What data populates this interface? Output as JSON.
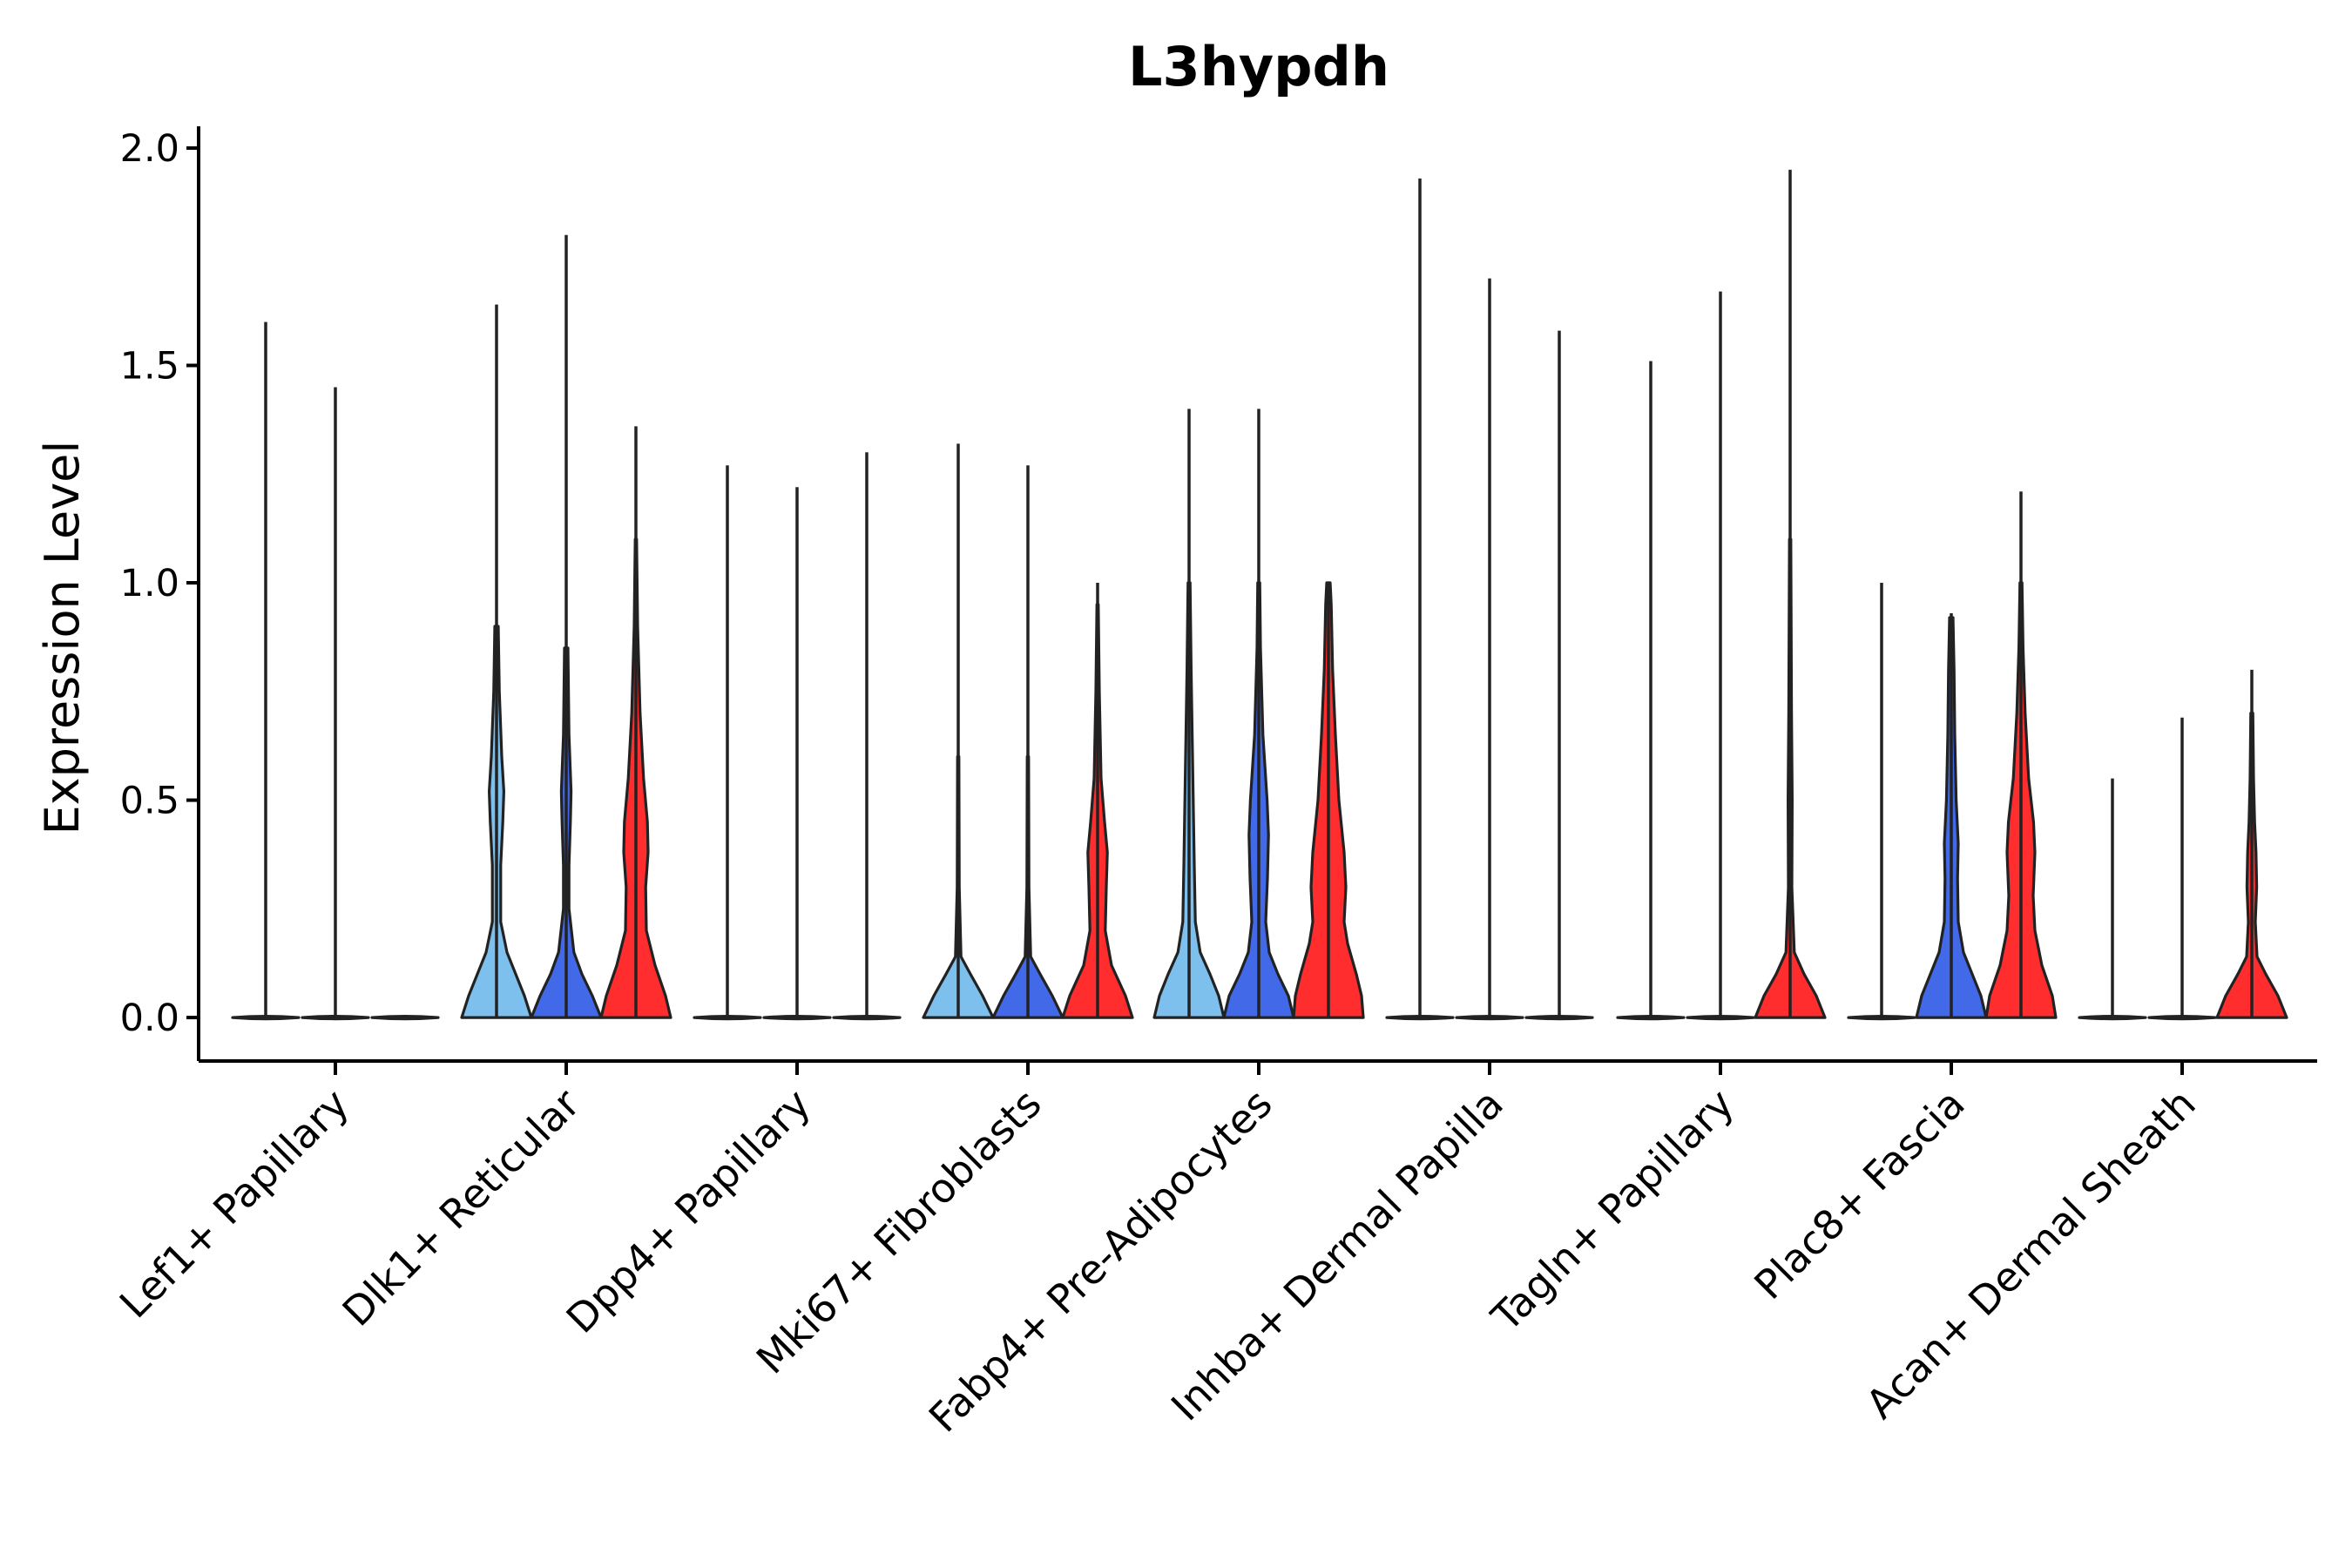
{
  "chart_data": {
    "type": "violin",
    "title": "L3hypdh",
    "xlabel": "",
    "ylabel": "Expression Level",
    "ylim": [
      -0.1,
      2.05
    ],
    "yticks": [
      "0.0",
      "0.5",
      "1.0",
      "1.5",
      "2.0"
    ],
    "grid": false,
    "legend": "none",
    "colors": {
      "light": "#7dc0ee",
      "blue": "#4169e8",
      "red": "#ff2d2d",
      "outline": "#222222"
    },
    "categories": [
      "Lef1+ Papillary",
      "Dlk1+ Reticular",
      "Dpp4+ Papillary",
      "Mki67+ Fibroblasts",
      "Fabp4+ Pre-Adipocytes",
      "Inhba+ Dermal Papilla",
      "Tagln+ Papillary",
      "Plac8+ Fascia",
      "Acan+ Dermal Sheath"
    ],
    "groups": [
      {
        "category": "Lef1+ Papillary",
        "violins": [
          {
            "color": "light",
            "max": 1.6,
            "shape": "flat"
          },
          {
            "color": "blue",
            "max": 1.45,
            "shape": "flat"
          },
          {
            "color": "red",
            "max": 0.0,
            "shape": "flat"
          }
        ]
      },
      {
        "category": "Dlk1+ Reticular",
        "violins": [
          {
            "color": "light",
            "max": 1.64,
            "shape": "dlk_light"
          },
          {
            "color": "blue",
            "max": 1.8,
            "shape": "dlk_blue"
          },
          {
            "color": "red",
            "max": 1.36,
            "shape": "dlk_red"
          }
        ]
      },
      {
        "category": "Dpp4+ Papillary",
        "violins": [
          {
            "color": "light",
            "max": 1.27,
            "shape": "flat"
          },
          {
            "color": "blue",
            "max": 1.22,
            "shape": "flat"
          },
          {
            "color": "red",
            "max": 1.3,
            "shape": "flat"
          }
        ]
      },
      {
        "category": "Mki67+ Fibroblasts",
        "violins": [
          {
            "color": "light",
            "max": 1.32,
            "shape": "mki_light"
          },
          {
            "color": "blue",
            "max": 1.27,
            "shape": "mki_blue"
          },
          {
            "color": "red",
            "max": 1.0,
            "shape": "mki_red"
          }
        ]
      },
      {
        "category": "Fabp4+ Pre-Adipocytes",
        "violins": [
          {
            "color": "light",
            "max": 1.4,
            "shape": "fab_light"
          },
          {
            "color": "blue",
            "max": 1.4,
            "shape": "fab_blue"
          },
          {
            "color": "red",
            "max": 1.0,
            "shape": "fab_red"
          }
        ]
      },
      {
        "category": "Inhba+ Dermal Papilla",
        "violins": [
          {
            "color": "light",
            "max": 1.93,
            "shape": "flat"
          },
          {
            "color": "blue",
            "max": 1.7,
            "shape": "flat"
          },
          {
            "color": "red",
            "max": 1.58,
            "shape": "flat"
          }
        ]
      },
      {
        "category": "Tagln+ Papillary",
        "violins": [
          {
            "color": "light",
            "max": 1.51,
            "shape": "flat"
          },
          {
            "color": "blue",
            "max": 1.67,
            "shape": "flat"
          },
          {
            "color": "red",
            "max": 1.95,
            "shape": "tag_red"
          }
        ]
      },
      {
        "category": "Plac8+ Fascia",
        "violins": [
          {
            "color": "light",
            "max": 1.0,
            "shape": "flat"
          },
          {
            "color": "blue",
            "max": 0.93,
            "shape": "plac_blue"
          },
          {
            "color": "red",
            "max": 1.21,
            "shape": "plac_red"
          }
        ]
      },
      {
        "category": "Acan+ Dermal Sheath",
        "violins": [
          {
            "color": "light",
            "max": 0.55,
            "shape": "flat"
          },
          {
            "color": "blue",
            "max": 0.69,
            "shape": "flat"
          },
          {
            "color": "red",
            "max": 0.8,
            "shape": "acan_red"
          }
        ]
      }
    ]
  }
}
